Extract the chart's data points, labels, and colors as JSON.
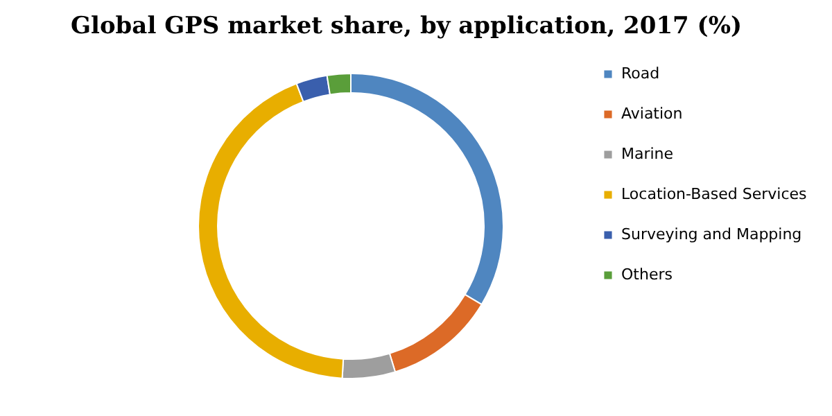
{
  "chart_data": {
    "type": "donut",
    "title": "Global GPS market share, by application, 2017 (%)",
    "categories": [
      "Road",
      "Aviation",
      "Marine",
      "Location-Based Services",
      "Surveying and Mapping",
      "Others"
    ],
    "values": [
      33.6,
      11.7,
      5.6,
      43.3,
      3.3,
      2.5
    ],
    "colors": [
      "#4f86c0",
      "#dc6a27",
      "#9e9e9e",
      "#e8ae00",
      "#3a5fad",
      "#5a9e3a"
    ],
    "legend": "right"
  }
}
